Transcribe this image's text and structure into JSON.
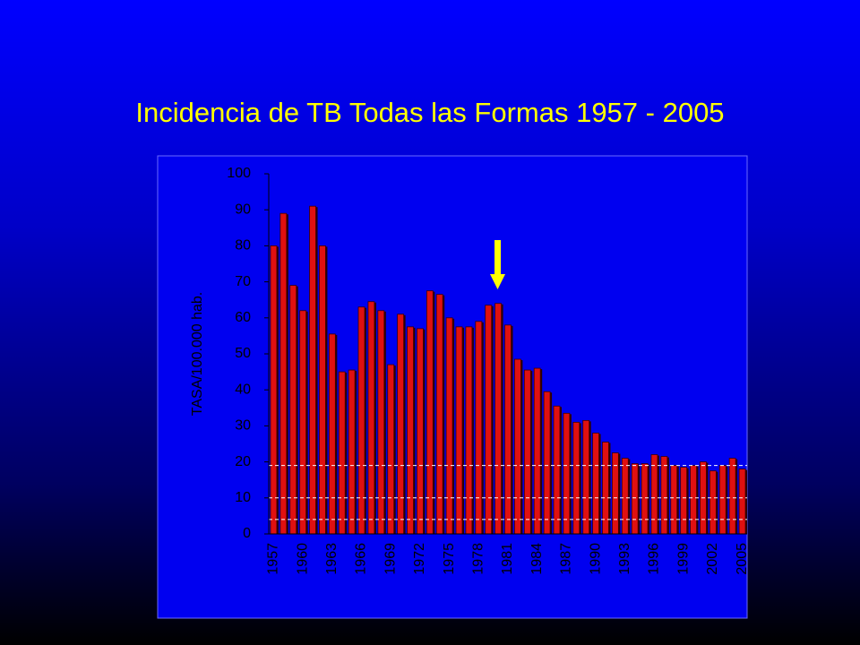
{
  "chart_data": {
    "type": "bar",
    "title": "Incidencia de TB Todas las Formas 1957 - 2005",
    "y_label": "TASA/100.000 hab.",
    "categories": [
      "1957",
      null,
      null,
      "1960",
      null,
      null,
      "1963",
      null,
      null,
      "1966",
      null,
      null,
      "1969",
      null,
      null,
      "1972",
      null,
      null,
      "1975",
      null,
      null,
      "1978",
      null,
      null,
      "1981",
      null,
      null,
      "1984",
      null,
      null,
      "1987",
      null,
      null,
      "1990",
      null,
      null,
      "1993",
      null,
      null,
      "1996",
      null,
      null,
      "1999",
      null,
      null,
      "2002",
      null,
      null,
      "2005"
    ],
    "values": [
      80,
      89,
      69,
      62,
      91,
      80,
      55.5,
      45,
      45.5,
      63,
      64.5,
      62,
      47,
      61,
      57.5,
      57,
      67.5,
      66.5,
      60,
      57.5,
      57.5,
      59,
      63.5,
      64,
      58,
      48.5,
      45.5,
      46,
      39.5,
      35.5,
      33.5,
      31,
      31.5,
      28,
      25.5,
      22.5,
      21,
      19.5,
      19.5,
      22,
      21.5,
      19,
      18.5,
      19,
      20,
      17.5,
      19,
      21,
      18
    ],
    "color": "#e01010",
    "reference_lines": [
      19,
      10,
      4
    ],
    "ylim": [
      0,
      100
    ],
    "yticks": [
      0,
      10,
      20,
      30,
      40,
      50,
      60,
      70,
      80,
      90,
      100
    ],
    "grid": false
  }
}
